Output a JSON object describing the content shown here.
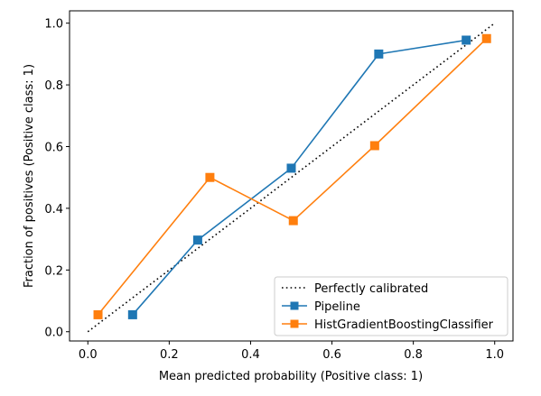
{
  "chart_data": {
    "type": "line",
    "xlabel": "Mean predicted probability (Positive class: 1)",
    "ylabel": "Fraction of positives (Positive class: 1)",
    "xlim": [
      -0.045,
      1.045
    ],
    "ylim": [
      -0.03,
      1.04
    ],
    "xticks": [
      0.0,
      0.2,
      0.4,
      0.6,
      0.8,
      1.0
    ],
    "yticks": [
      0.0,
      0.2,
      0.4,
      0.6,
      0.8,
      1.0
    ],
    "xtick_labels": [
      "0.0",
      "0.2",
      "0.4",
      "0.6",
      "0.8",
      "1.0"
    ],
    "ytick_labels": [
      "0.0",
      "0.2",
      "0.4",
      "0.6",
      "0.8",
      "1.0"
    ],
    "grid": false,
    "legend_position": "lower-right",
    "series": [
      {
        "name": "Perfectly calibrated",
        "color": "#000000",
        "linestyle": "dotted",
        "marker": "none",
        "x": [
          0.0,
          1.0
        ],
        "y": [
          0.0,
          1.0
        ]
      },
      {
        "name": "Pipeline",
        "color": "#1f77b4",
        "linestyle": "solid",
        "marker": "square",
        "x": [
          0.11,
          0.27,
          0.5,
          0.715,
          0.93
        ],
        "y": [
          0.055,
          0.297,
          0.53,
          0.9,
          0.945
        ]
      },
      {
        "name": "HistGradientBoostingClassifier",
        "color": "#ff7f0e",
        "linestyle": "solid",
        "marker": "square",
        "x": [
          0.025,
          0.3,
          0.505,
          0.705,
          0.98
        ],
        "y": [
          0.055,
          0.5,
          0.36,
          0.603,
          0.95
        ]
      }
    ]
  }
}
